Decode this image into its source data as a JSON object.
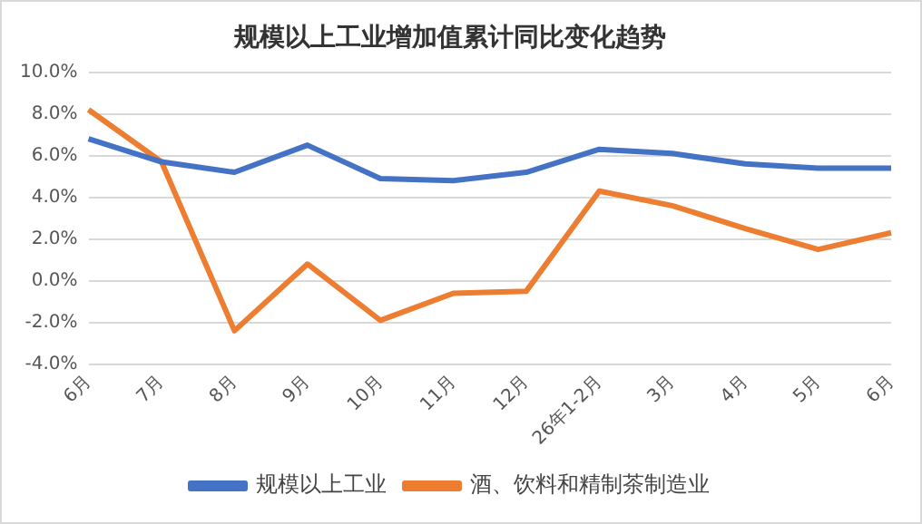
{
  "chart_data": {
    "type": "line",
    "title": "规模以上工业增加值累计同比变化趋势",
    "categories": [
      "6月",
      "7月",
      "8月",
      "9月",
      "10月",
      "11月",
      "12月",
      "26年1-2月",
      "3月",
      "4月",
      "5月",
      "6月"
    ],
    "series": [
      {
        "name": "规模以上工业",
        "color": "#4472c4",
        "values": [
          6.8,
          5.7,
          5.2,
          6.5,
          4.9,
          4.8,
          5.2,
          6.3,
          6.1,
          5.6,
          5.4,
          5.4
        ]
      },
      {
        "name": "酒、饮料和精制茶制造业",
        "color": "#ed7d31",
        "values": [
          8.2,
          5.7,
          -2.4,
          0.8,
          -1.9,
          -0.6,
          -0.5,
          4.3,
          3.6,
          2.5,
          1.5,
          2.3
        ]
      }
    ],
    "ylim": [
      -4,
      10
    ],
    "yticks": [
      {
        "value": -4,
        "label": "-4.0%"
      },
      {
        "value": -2,
        "label": "-2.0%"
      },
      {
        "value": 0,
        "label": "0.0%"
      },
      {
        "value": 2,
        "label": "2.0%"
      },
      {
        "value": 4,
        "label": "4.0%"
      },
      {
        "value": 6,
        "label": "6.0%"
      },
      {
        "value": 8,
        "label": "8.0%"
      },
      {
        "value": 10,
        "label": "10.0%"
      }
    ],
    "grid": "y",
    "legend": "bottom",
    "marker": "none",
    "line_style": "solid"
  }
}
